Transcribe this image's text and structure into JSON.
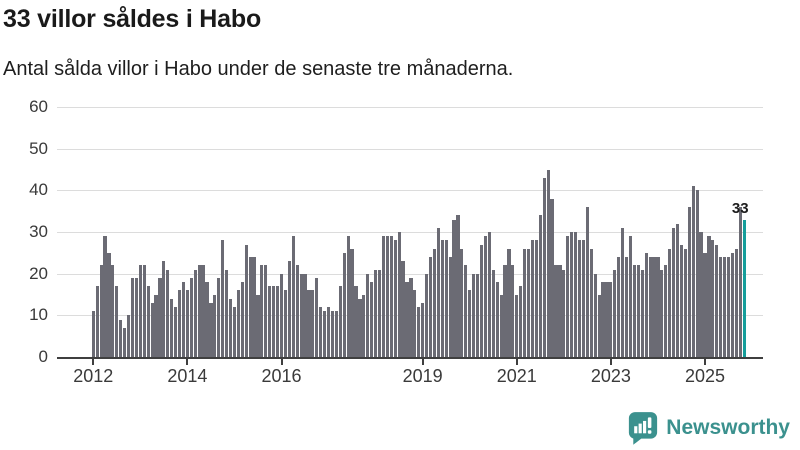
{
  "header": {
    "title": "33 villor såldes i Habo",
    "subtitle": "Antal sålda villor i Habo under de senaste tre månaderna."
  },
  "chart_data": {
    "type": "bar",
    "title": "33 villor såldes i Habo",
    "subtitle": "Antal sålda villor i Habo under de senaste tre månaderna.",
    "frequency": "monthly",
    "x_start": "2012-01",
    "x_end": "2025-11",
    "values": [
      11,
      17,
      22,
      29,
      25,
      22,
      17,
      9,
      7,
      10,
      19,
      19,
      22,
      22,
      17,
      13,
      15,
      19,
      23,
      21,
      14,
      12,
      16,
      18,
      16,
      19,
      21,
      22,
      22,
      18,
      13,
      15,
      19,
      28,
      21,
      14,
      12,
      16,
      18,
      27,
      24,
      24,
      15,
      22,
      22,
      17,
      17,
      17,
      20,
      16,
      23,
      29,
      22,
      20,
      20,
      16,
      16,
      19,
      12,
      11,
      12,
      11,
      11,
      17,
      25,
      29,
      26,
      17,
      14,
      15,
      20,
      18,
      21,
      21,
      29,
      29,
      29,
      28,
      30,
      23,
      18,
      19,
      16,
      12,
      13,
      20,
      24,
      26,
      31,
      28,
      28,
      24,
      33,
      34,
      26,
      22,
      16,
      20,
      20,
      27,
      29,
      30,
      21,
      18,
      15,
      22,
      26,
      22,
      15,
      17,
      26,
      26,
      28,
      28,
      34,
      43,
      45,
      38,
      22,
      22,
      21,
      29,
      30,
      30,
      28,
      28,
      36,
      26,
      20,
      15,
      18,
      18,
      18,
      21,
      24,
      31,
      24,
      29,
      22,
      22,
      21,
      25,
      24,
      24,
      24,
      21,
      22,
      26,
      31,
      32,
      27,
      26,
      36,
      41,
      40,
      30,
      25,
      29,
      28,
      27,
      24,
      24,
      24,
      25,
      26,
      36,
      33
    ],
    "ylim": [
      0,
      60
    ],
    "y_ticks": [
      0,
      10,
      20,
      30,
      40,
      50,
      60
    ],
    "x_ticks": [
      {
        "label": "2012",
        "month_index": 0
      },
      {
        "label": "2014",
        "month_index": 24
      },
      {
        "label": "2016",
        "month_index": 48
      },
      {
        "label": "2019",
        "month_index": 84
      },
      {
        "label": "2021",
        "month_index": 108
      },
      {
        "label": "2023",
        "month_index": 132
      },
      {
        "label": "2025",
        "month_index": 156
      }
    ],
    "grid": "horizontal",
    "legend": "none",
    "highlight_last_bar": true,
    "last_value_label": "33",
    "colors": {
      "bar": "#6b6b74",
      "highlight": "#159e9b",
      "grid": "#dcdcdc",
      "axis": "#3f3f3f",
      "tick_label": "#3a3a3a"
    }
  },
  "footer": {
    "brand": "Newsworthy",
    "logo_icon": "newsworthy-speech-bubble-bar-chart-icon",
    "brand_color": "#3b918e"
  }
}
